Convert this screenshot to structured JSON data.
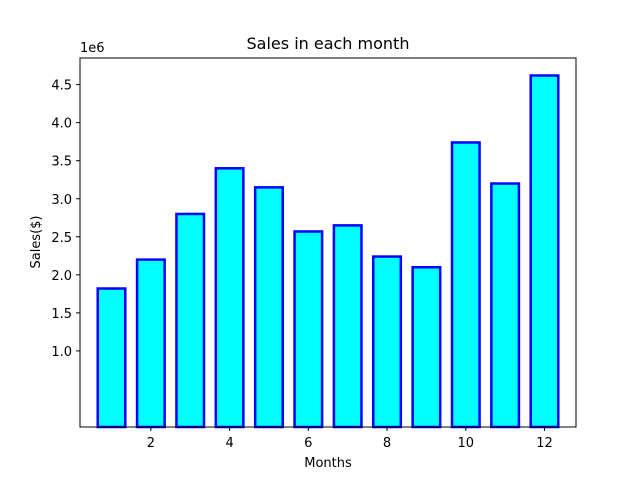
{
  "chart_data": {
    "type": "bar",
    "title": "Sales in each month",
    "xlabel": "Months",
    "ylabel": "Sales($)",
    "y_offset_label": "1e6",
    "x": [
      1,
      2,
      3,
      4,
      5,
      6,
      7,
      8,
      9,
      10,
      11,
      12
    ],
    "values": [
      1820000,
      2200000,
      2800000,
      3400000,
      3150000,
      2570000,
      2650000,
      2240000,
      2100000,
      3740000,
      3200000,
      4620000
    ],
    "x_ticks": [
      2,
      4,
      6,
      8,
      10,
      12
    ],
    "y_ticks": [
      1.0,
      1.5,
      2.0,
      2.5,
      3.0,
      3.5,
      4.0,
      4.5
    ],
    "y_tick_labels": [
      "1.0",
      "1.5",
      "2.0",
      "2.5",
      "3.0",
      "3.5",
      "4.0",
      "4.5"
    ],
    "xlim": [
      0.2,
      12.8
    ],
    "ylim": [
      0,
      4.85
    ],
    "grid": false,
    "legend": "none",
    "colors": {
      "bar_fill": "#00ffff",
      "bar_edge": "#0000ff"
    }
  }
}
